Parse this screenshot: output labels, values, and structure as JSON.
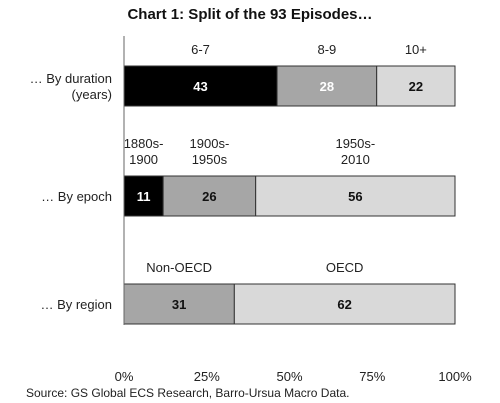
{
  "chart_data": {
    "type": "bar",
    "orientation": "horizontal",
    "stacked": true,
    "title": "Chart 1: Split of the 93 Episodes…",
    "source": "Source: GS Global ECS Research, Barro-Ursua Macro Data.",
    "total": 93,
    "xlim": [
      0,
      93
    ],
    "xticks": [
      "0%",
      "25%",
      "50%",
      "75%",
      "100%"
    ],
    "grid": false,
    "legend": "none",
    "rows": [
      {
        "label": [
          "… By duration",
          "(years)"
        ],
        "segments": [
          {
            "name": [
              "6-7"
            ],
            "value": 43,
            "color": "#000000",
            "text_color": "#ffffff"
          },
          {
            "name": [
              "8-9"
            ],
            "value": 28,
            "color": "#a6a6a6",
            "text_color": "#ffffff"
          },
          {
            "name": [
              "10+"
            ],
            "value": 22,
            "color": "#d9d9d9",
            "text_color": "#111111"
          }
        ]
      },
      {
        "label": [
          "… By epoch"
        ],
        "segments": [
          {
            "name": [
              "1880s-",
              "1900"
            ],
            "value": 11,
            "color": "#000000",
            "text_color": "#ffffff"
          },
          {
            "name": [
              "1900s-",
              "1950s"
            ],
            "value": 26,
            "color": "#a6a6a6",
            "text_color": "#111111"
          },
          {
            "name": [
              "1950s-",
              "2010"
            ],
            "value": 56,
            "color": "#d9d9d9",
            "text_color": "#111111"
          }
        ]
      },
      {
        "label": [
          "… By region"
        ],
        "segments": [
          {
            "name": [
              "Non-OECD"
            ],
            "value": 31,
            "color": "#a6a6a6",
            "text_color": "#111111"
          },
          {
            "name": [
              "OECD"
            ],
            "value": 62,
            "color": "#d9d9d9",
            "text_color": "#111111"
          }
        ]
      }
    ]
  }
}
